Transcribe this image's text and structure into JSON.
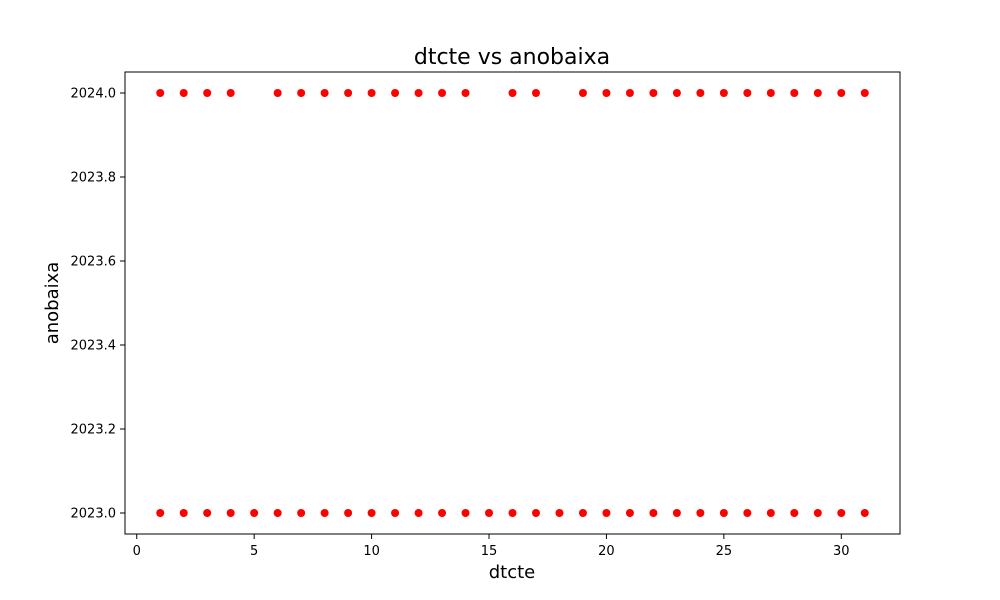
{
  "chart_data": {
    "type": "scatter",
    "title": "dtcte vs anobaixa",
    "xlabel": "dtcte",
    "ylabel": "anobaixa",
    "xlim": [
      -0.5,
      32.5
    ],
    "ylim": [
      2022.95,
      2024.05
    ],
    "xticks": [
      0,
      5,
      10,
      15,
      20,
      25,
      30
    ],
    "xtick_labels": [
      "0",
      "5",
      "10",
      "15",
      "20",
      "25",
      "30"
    ],
    "yticks": [
      2023.0,
      2023.2,
      2023.4,
      2023.6,
      2023.8,
      2024.0
    ],
    "ytick_labels": [
      "2023.0",
      "2023.2",
      "2023.4",
      "2023.6",
      "2023.8",
      "2024.0"
    ],
    "grid": false,
    "color": "#ff0000",
    "series": [
      {
        "x": [
          1,
          2,
          3,
          4,
          5,
          6,
          7,
          8,
          9,
          10,
          11,
          12,
          13,
          14,
          15,
          16,
          17,
          18,
          19,
          20,
          21,
          22,
          23,
          24,
          25,
          26,
          27,
          28,
          29,
          30,
          31
        ],
        "y": [
          2023,
          2023,
          2023,
          2023,
          2023,
          2023,
          2023,
          2023,
          2023,
          2023,
          2023,
          2023,
          2023,
          2023,
          2023,
          2023,
          2023,
          2023,
          2023,
          2023,
          2023,
          2023,
          2023,
          2023,
          2023,
          2023,
          2023,
          2023,
          2023,
          2023,
          2023
        ]
      },
      {
        "x": [
          1,
          2,
          3,
          4,
          6,
          7,
          8,
          9,
          10,
          11,
          12,
          13,
          14,
          16,
          17,
          19,
          20,
          21,
          22,
          23,
          24,
          25,
          26,
          27,
          28,
          29,
          30,
          31
        ],
        "y": [
          2024,
          2024,
          2024,
          2024,
          2024,
          2024,
          2024,
          2024,
          2024,
          2024,
          2024,
          2024,
          2024,
          2024,
          2024,
          2024,
          2024,
          2024,
          2024,
          2024,
          2024,
          2024,
          2024,
          2024,
          2024,
          2024,
          2024,
          2024
        ]
      }
    ]
  }
}
